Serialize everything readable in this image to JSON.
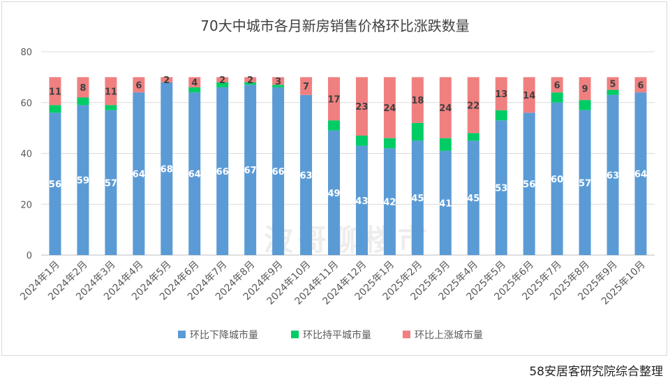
{
  "chart_data": {
    "type": "bar",
    "stacked": true,
    "title": "70大中城市各月新房销售价格环比涨跌数量",
    "categories": [
      "2024年1月",
      "2024年2月",
      "2024年3月",
      "2024年4月",
      "2024年5月",
      "2024年6月",
      "2024年7月",
      "2024年8月",
      "2024年9月",
      "2024年10月",
      "2024年11月",
      "2024年12月",
      "2025年1月",
      "2025年2月",
      "2025年3月",
      "2025年4月",
      "2025年5月",
      "2025年6月",
      "2025年7月",
      "2025年8月",
      "2025年9月",
      "2025年10月"
    ],
    "series": [
      {
        "name": "环比下降城市量",
        "color": "#5b9bd5",
        "values": [
          56,
          59,
          57,
          64,
          68,
          64,
          66,
          67,
          66,
          63,
          49,
          43,
          42,
          45,
          41,
          45,
          53,
          56,
          60,
          57,
          63,
          64
        ]
      },
      {
        "name": "环比持平城市量",
        "color": "#00cc66",
        "values": [
          3,
          3,
          2,
          0,
          0,
          2,
          2,
          1,
          1,
          0,
          4,
          4,
          4,
          7,
          5,
          3,
          4,
          0,
          4,
          4,
          2,
          0
        ]
      },
      {
        "name": "环比上涨城市量",
        "color": "#f08080",
        "values": [
          11,
          8,
          11,
          6,
          2,
          4,
          2,
          2,
          3,
          7,
          17,
          23,
          24,
          18,
          24,
          22,
          13,
          14,
          6,
          9,
          5,
          6
        ]
      }
    ],
    "data_labels": {
      "environment_decrease": [
        56,
        59,
        57,
        64,
        68,
        64,
        66,
        67,
        66,
        63,
        49,
        43,
        42,
        45,
        41,
        45,
        53,
        56,
        60,
        57,
        63,
        64
      ],
      "rise": [
        11,
        8,
        11,
        6,
        2,
        4,
        2,
        2,
        3,
        7,
        17,
        23,
        24,
        18,
        24,
        22,
        13,
        14,
        6,
        9,
        5,
        6
      ]
    },
    "ylim": [
      0,
      80
    ],
    "yticks": [
      0,
      20,
      40,
      60,
      80
    ],
    "grid": true,
    "legend_position": "bottom"
  },
  "watermark": "波哥聊楼市",
  "source_note": "58安居客研究院综合整理"
}
